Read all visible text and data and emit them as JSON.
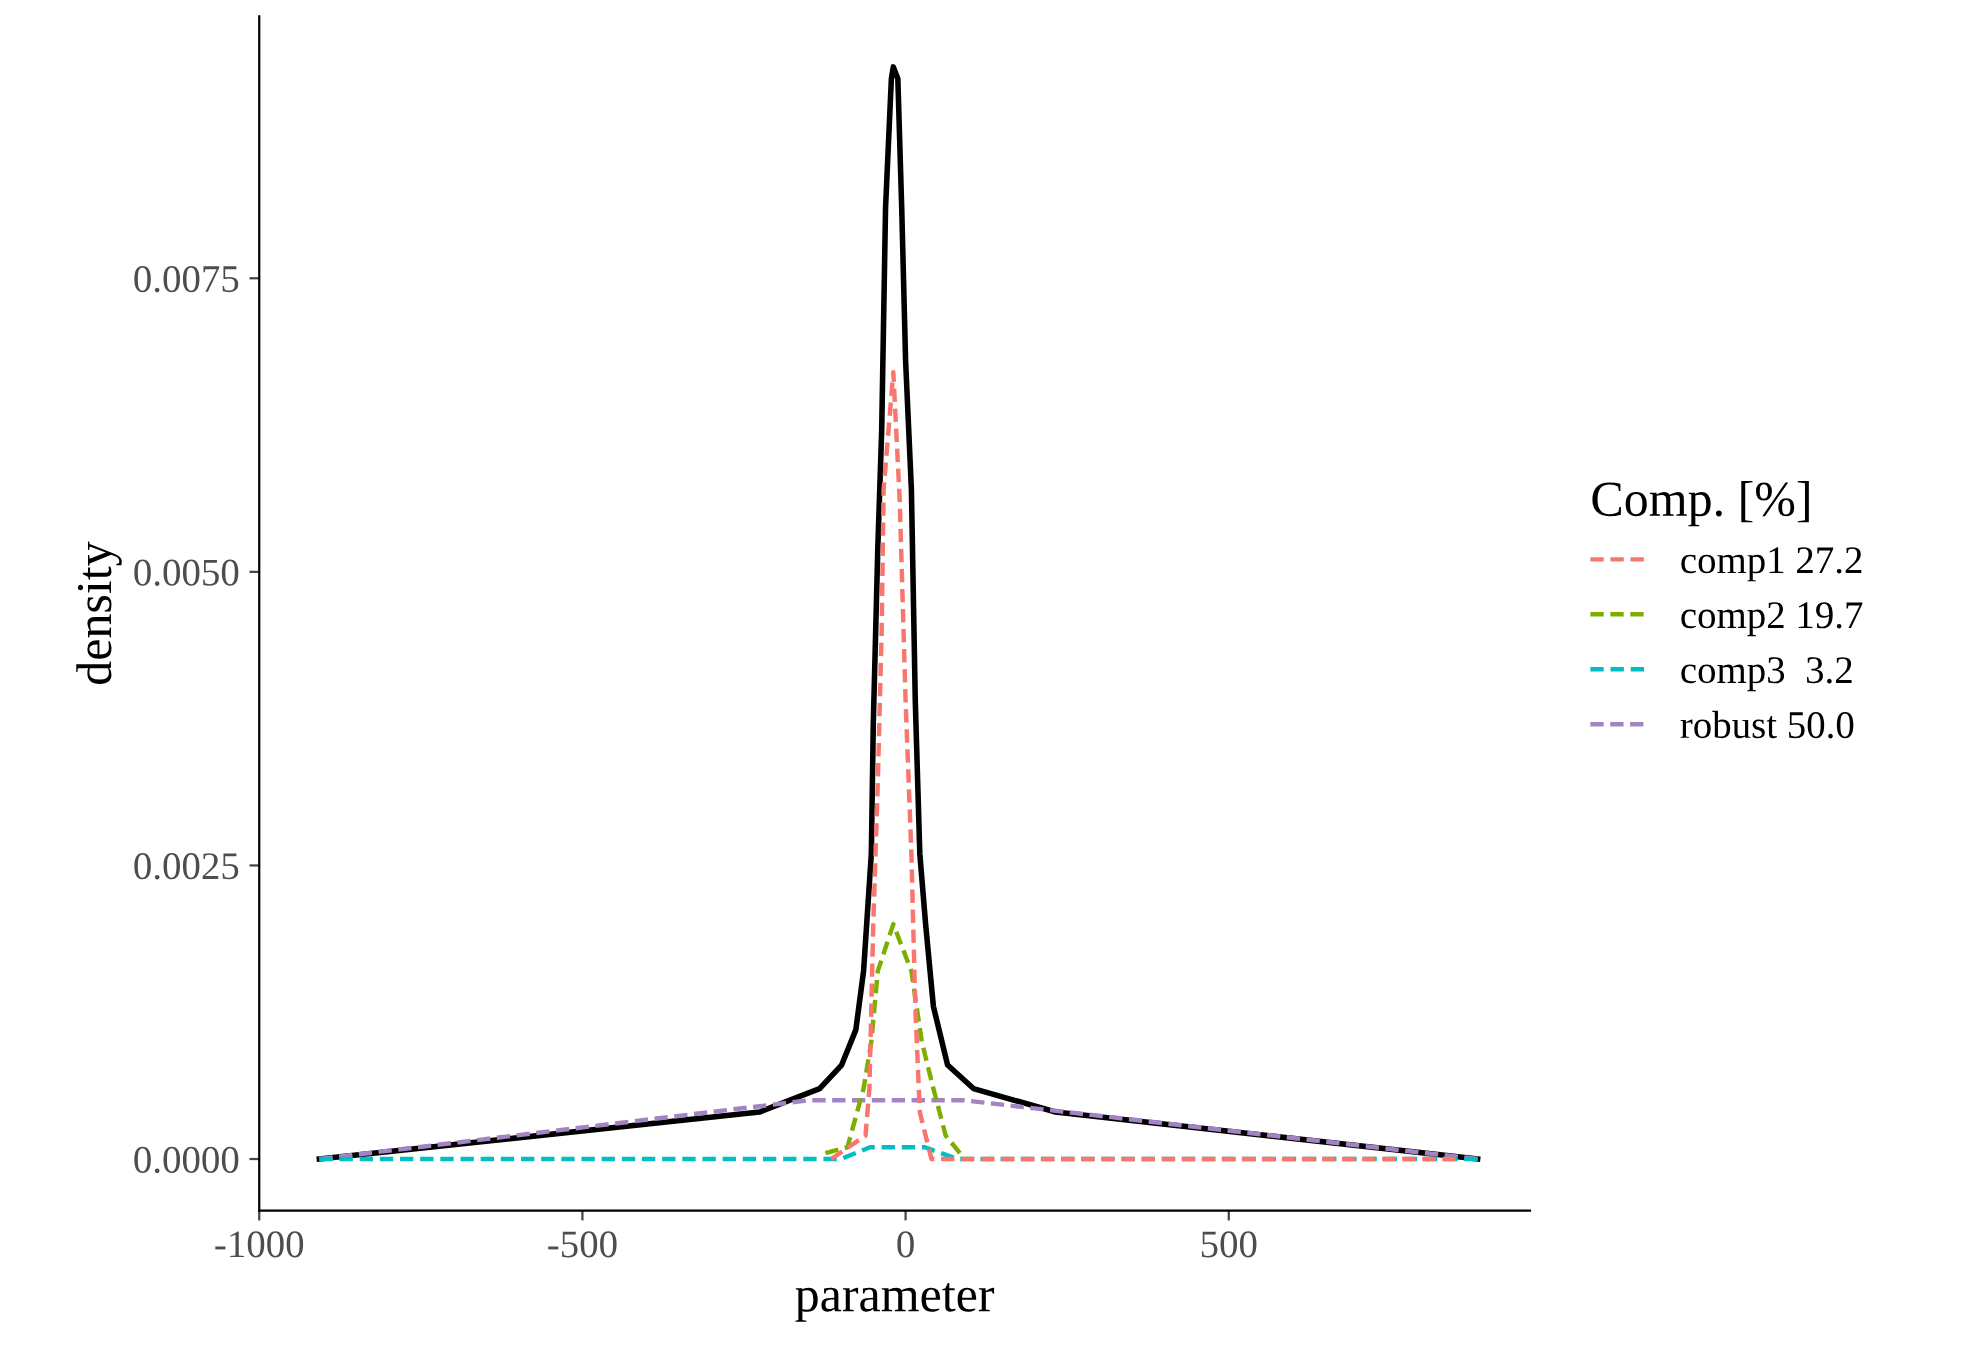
{
  "chart_data": {
    "type": "line",
    "xlabel": "parameter",
    "ylabel": "density",
    "legend_title": "Comp. [%]",
    "legend": "right",
    "grid": false,
    "xlim": [
      -1000,
      966
    ],
    "ylim": [
      -0.00044,
      0.00973
    ],
    "xticks": [
      -1000,
      -500,
      0,
      500
    ],
    "yticks": [
      {
        "value": 0,
        "label": "0.0000"
      },
      {
        "value": 0.0025,
        "label": "0.0025"
      },
      {
        "value": 0.005,
        "label": "0.0050"
      },
      {
        "value": 0.0075,
        "label": "0.0075"
      }
    ],
    "series": [
      {
        "name": "comp1 27.2",
        "color": "#f8766d",
        "line_style": "dashed",
        "x": [
          -115,
          -62,
          -56,
          -50,
          -43,
          -37,
          -34,
          -19,
          -9,
          0,
          9,
          15,
          22,
          40,
          851
        ],
        "values": [
          0,
          0.0002,
          0.0006,
          0.002,
          0.0032,
          0.0045,
          0.0057,
          0.0067,
          0.0056,
          0.0039,
          0.0026,
          0.0013,
          0.0004,
          0,
          0
        ]
      },
      {
        "name": "comp2 19.7",
        "color": "#7cae00",
        "line_style": "dashed",
        "x": [
          -124,
          -90,
          -65,
          -53,
          -43,
          -19,
          9,
          25,
          43,
          62,
          84
        ],
        "values": [
          5e-05,
          0.0001,
          0.0006,
          0.001,
          0.0016,
          0.002,
          0.0016,
          0.001,
          0.0006,
          0.0002,
          5e-05
        ]
      },
      {
        "name": "comp3  3.2",
        "color": "#00bfc4",
        "line_style": "dashed",
        "x": [
          -907,
          -100,
          -55,
          30,
          80,
          885
        ],
        "values": [
          0,
          0,
          0.0001,
          0.0001,
          0,
          0
        ]
      },
      {
        "name": "robust 50.0",
        "color": "#a383c4",
        "line_style": "dashed",
        "x": [
          -907,
          -150,
          -80,
          0,
          90,
          885
        ],
        "values": [
          0,
          0.0005,
          0.0005,
          0.0005,
          0.0005,
          0
        ]
      },
      {
        "color": "#000000",
        "line_style": "solid",
        "x": [
          -907,
          -226,
          -133,
          -99,
          -77,
          -65,
          -53,
          -50,
          -43,
          -37,
          -31,
          -22,
          -19,
          -12,
          -6,
          0,
          9,
          15,
          22,
          31,
          43,
          65,
          105,
          232,
          885
        ],
        "values": [
          0,
          0.0004,
          0.0006,
          0.0008,
          0.0011,
          0.0016,
          0.0026,
          0.0037,
          0.0052,
          0.0062,
          0.0081,
          0.0092,
          0.0093,
          0.0092,
          0.0081,
          0.0068,
          0.0057,
          0.0039,
          0.0026,
          0.002,
          0.0013,
          0.0008,
          0.0006,
          0.0004,
          0
        ]
      }
    ]
  }
}
